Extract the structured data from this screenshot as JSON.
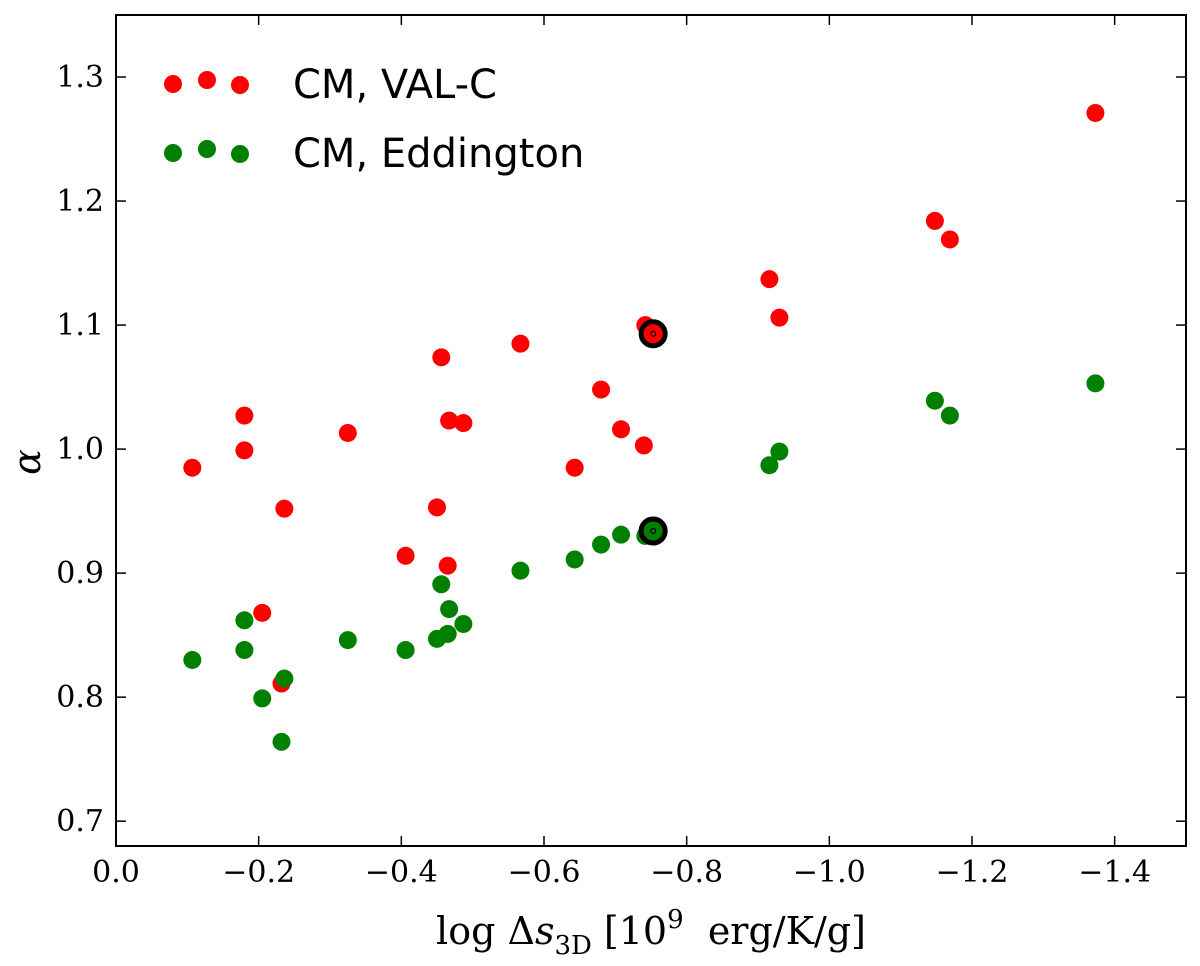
{
  "chart_data": {
    "type": "scatter",
    "title": "",
    "xlabel": "log Δs_3D [10^9 erg/K/g]",
    "xlabel_parts": {
      "prefix": "log Δ",
      "var": "s",
      "sub": "3D",
      "open": " [10",
      "sup": "9",
      "unit": "  erg/K/g]"
    },
    "ylabel": "α",
    "xlim": [
      0.0,
      -1.5
    ],
    "ylim": [
      0.68,
      1.35
    ],
    "xticks": [
      0.0,
      -0.2,
      -0.4,
      -0.6,
      -0.8,
      -1.0,
      -1.2,
      -1.4
    ],
    "xtick_labels": [
      "0.0",
      "−0.2",
      "−0.4",
      "−0.6",
      "−0.8",
      "−1.0",
      "−1.2",
      "−1.4"
    ],
    "yticks": [
      0.7,
      0.8,
      0.9,
      1.0,
      1.1,
      1.2,
      1.3
    ],
    "ytick_labels": [
      "0.7",
      "0.8",
      "0.9",
      "1.0",
      "1.1",
      "1.2",
      "1.3"
    ],
    "grid": false,
    "legend_position": "top-left",
    "series": [
      {
        "name": "CM, VAL-C",
        "color": "#ff0000",
        "points": [
          {
            "x": -0.107,
            "y": 0.985
          },
          {
            "x": -0.18,
            "y": 1.027
          },
          {
            "x": -0.18,
            "y": 0.999
          },
          {
            "x": -0.205,
            "y": 0.868
          },
          {
            "x": -0.236,
            "y": 0.952
          },
          {
            "x": -0.232,
            "y": 0.811
          },
          {
            "x": -0.325,
            "y": 1.013
          },
          {
            "x": -0.406,
            "y": 0.914
          },
          {
            "x": -0.45,
            "y": 0.953
          },
          {
            "x": -0.456,
            "y": 1.074
          },
          {
            "x": -0.467,
            "y": 1.023
          },
          {
            "x": -0.465,
            "y": 0.906
          },
          {
            "x": -0.487,
            "y": 1.021
          },
          {
            "x": -0.567,
            "y": 1.085
          },
          {
            "x": -0.643,
            "y": 0.985
          },
          {
            "x": -0.68,
            "y": 1.048
          },
          {
            "x": -0.708,
            "y": 1.016
          },
          {
            "x": -0.74,
            "y": 1.003
          },
          {
            "x": -0.742,
            "y": 1.1
          },
          {
            "x": -0.916,
            "y": 1.137
          },
          {
            "x": -0.93,
            "y": 1.106
          },
          {
            "x": -1.148,
            "y": 1.184
          },
          {
            "x": -1.169,
            "y": 1.169
          },
          {
            "x": -1.373,
            "y": 1.271
          }
        ],
        "highlight": {
          "x": -0.753,
          "y": 1.093
        }
      },
      {
        "name": "CM, Eddington",
        "color": "#008000",
        "points": [
          {
            "x": -0.107,
            "y": 0.83
          },
          {
            "x": -0.18,
            "y": 0.862
          },
          {
            "x": -0.18,
            "y": 0.838
          },
          {
            "x": -0.205,
            "y": 0.799
          },
          {
            "x": -0.236,
            "y": 0.815
          },
          {
            "x": -0.232,
            "y": 0.764
          },
          {
            "x": -0.325,
            "y": 0.846
          },
          {
            "x": -0.406,
            "y": 0.838
          },
          {
            "x": -0.45,
            "y": 0.847
          },
          {
            "x": -0.456,
            "y": 0.891
          },
          {
            "x": -0.467,
            "y": 0.871
          },
          {
            "x": -0.465,
            "y": 0.851
          },
          {
            "x": -0.487,
            "y": 0.859
          },
          {
            "x": -0.567,
            "y": 0.902
          },
          {
            "x": -0.643,
            "y": 0.911
          },
          {
            "x": -0.68,
            "y": 0.923
          },
          {
            "x": -0.708,
            "y": 0.931
          },
          {
            "x": -0.742,
            "y": 0.93
          },
          {
            "x": -0.916,
            "y": 0.987
          },
          {
            "x": -0.93,
            "y": 0.998
          },
          {
            "x": -1.148,
            "y": 1.039
          },
          {
            "x": -1.169,
            "y": 1.027
          },
          {
            "x": -1.373,
            "y": 1.053
          }
        ],
        "highlight": {
          "x": -0.753,
          "y": 0.934
        }
      }
    ]
  }
}
